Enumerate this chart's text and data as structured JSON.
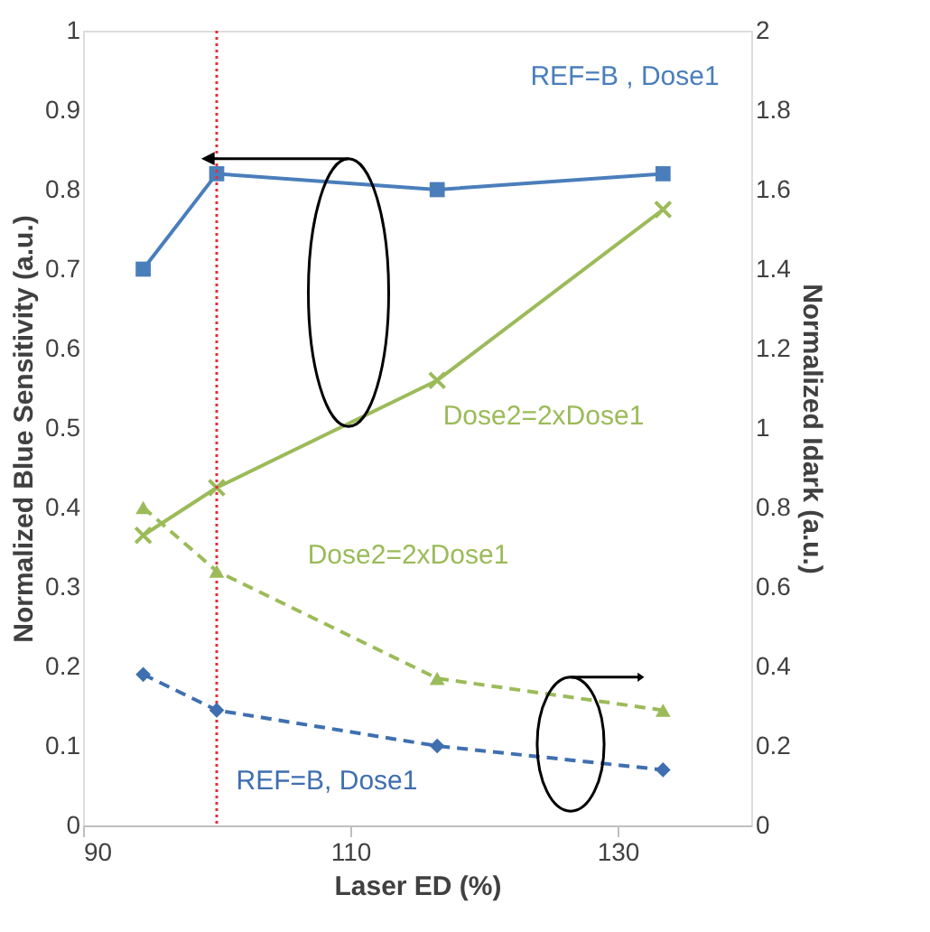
{
  "chart_data": {
    "type": "line",
    "xlabel": "Laser ED (%)",
    "ylabel": "Normalized Blue Sensitivity (a.u.)",
    "y2label": "Normalized Idark (a.u.)",
    "x": [
      94.5,
      100,
      116.5,
      133.4
    ],
    "xlim": [
      90,
      140
    ],
    "xticks": [
      90,
      110,
      130
    ],
    "ylim": [
      0,
      1
    ],
    "yticks": [
      0,
      0.1,
      0.2,
      0.3,
      0.4,
      0.5,
      0.6,
      0.7,
      0.8,
      0.9,
      1
    ],
    "y2lim": [
      0,
      2
    ],
    "y2ticks": [
      0,
      0.2,
      0.4,
      0.6,
      0.8,
      1,
      1.2,
      1.4,
      1.6,
      1.8,
      2
    ],
    "series": [
      {
        "name": "REF=B , Dose1",
        "color": "#4a7ebb",
        "values": [
          0.7,
          0.82,
          0.8,
          0.82
        ],
        "marker": "square",
        "line_style": "solid"
      },
      {
        "name": "Dose2=2xDose1",
        "color": "#9bbb59",
        "values": [
          0.365,
          0.425,
          0.56,
          0.775
        ],
        "marker": "cross",
        "line_style": "solid"
      },
      {
        "name": "Dose2=2xDose1",
        "color": "#9bbb59",
        "values": [
          0.8,
          0.64,
          0.37,
          0.29
        ],
        "marker": "triangle",
        "line_style": "dashed",
        "axis": "y2"
      },
      {
        "name": "REF=B, Dose1",
        "color": "#3f6fb0",
        "values": [
          0.38,
          0.29,
          0.2,
          0.14
        ],
        "marker": "diamond",
        "line_style": "dashed",
        "axis": "y2"
      }
    ],
    "ref_lines": [
      {
        "axis": "x",
        "value": 100,
        "color": "#e0303a",
        "line_style": "dotted"
      }
    ],
    "grid": false
  }
}
